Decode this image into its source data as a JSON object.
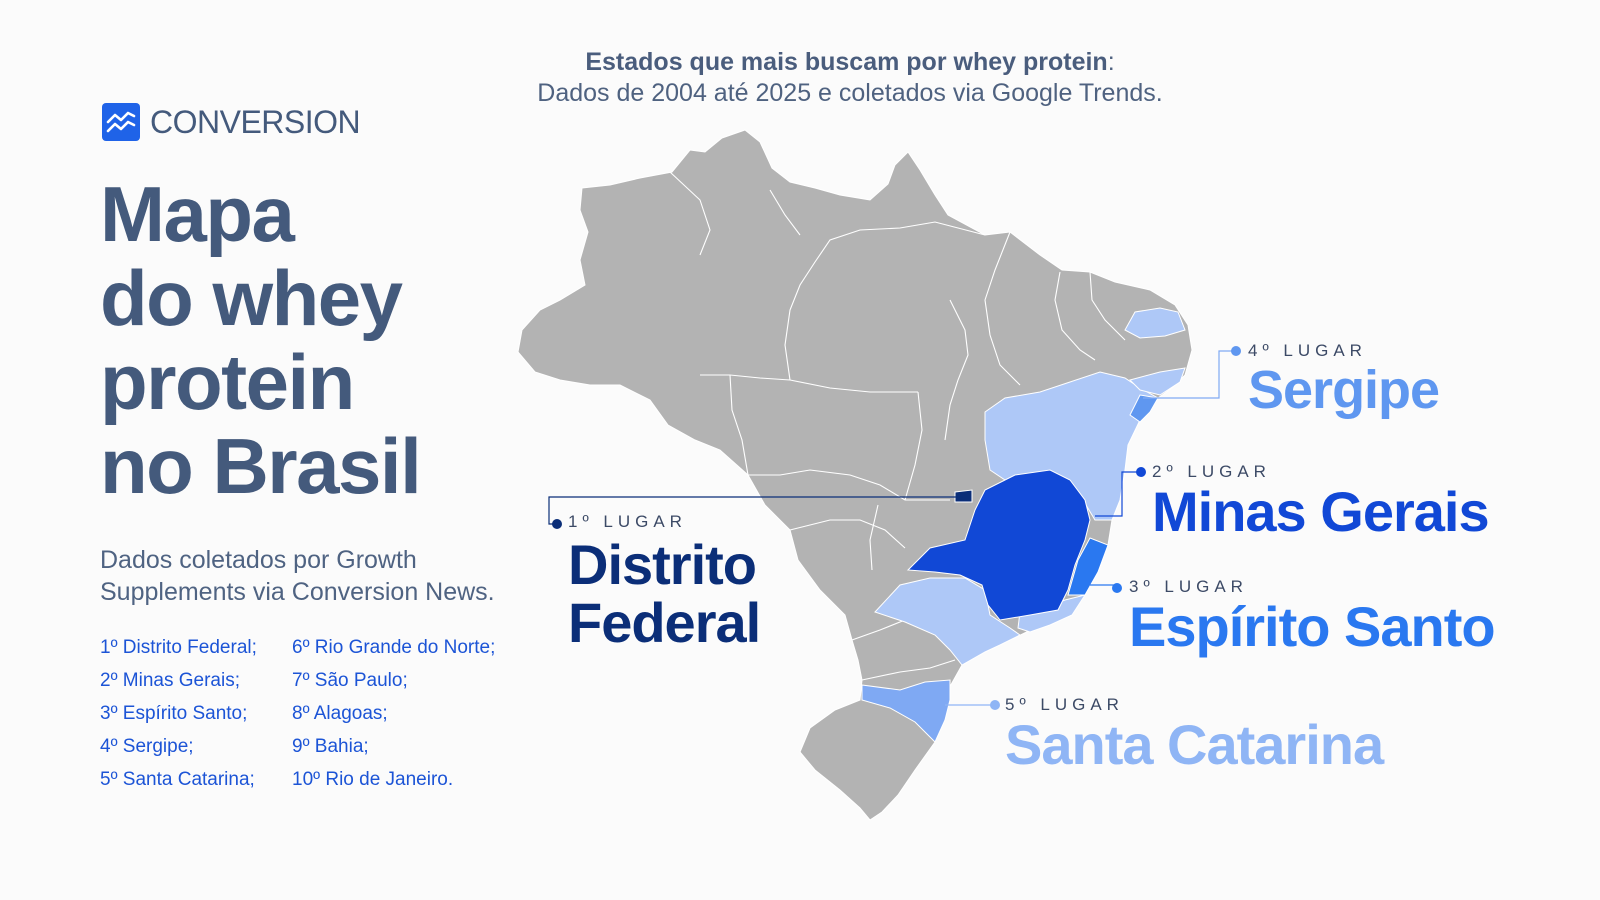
{
  "header": {
    "title_bold": "Estados que mais buscam por whey protein",
    "title_colon": ":",
    "subtitle": "Dados de 2004 até 2025 e coletados via Google Trends."
  },
  "logo": {
    "text": "CONVERSION",
    "icon": "chart-trend-icon"
  },
  "title": {
    "line1": "Mapa",
    "line2": "do whey",
    "line3": "protein",
    "line4": "no Brasil"
  },
  "source_text": "Dados coletados por Growth Supplements via Conversion News.",
  "ranking": [
    "1º Distrito Federal;",
    "2º Minas Gerais;",
    "3º Espírito Santo;",
    "4º Sergipe;",
    "5º Santa Catarina;",
    "6º Rio Grande do Norte;",
    "7º São Paulo;",
    "8º Alagoas;",
    "9º Bahia;",
    "10º Rio de Janeiro."
  ],
  "callouts": [
    {
      "place": "1º LUGAR",
      "state": "Distrito Federal",
      "state_line1": "Distrito",
      "state_line2": "Federal",
      "color": "#0b2e78"
    },
    {
      "place": "2º LUGAR",
      "state": "Minas Gerais",
      "color": "#1148d6"
    },
    {
      "place": "3º LUGAR",
      "state": "Espírito Santo",
      "color": "#2a78f0"
    },
    {
      "place": "4º LUGAR",
      "state": "Sergipe",
      "color": "#5f97f0"
    },
    {
      "place": "5º LUGAR",
      "state": "Santa Catarina",
      "color": "#8fb5f5"
    }
  ],
  "map_colors": {
    "other_states": "#b3b3b3",
    "top10_light": "#aec8f7",
    "rank1": "#0b2e78",
    "rank2": "#1148d6",
    "rank3": "#2a78f0",
    "rank4": "#5f97f0",
    "rank5": "#7fa9f3"
  }
}
